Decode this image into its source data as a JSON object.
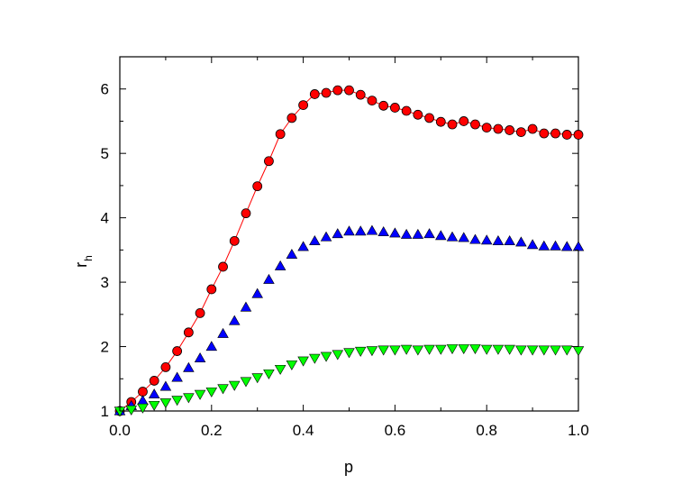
{
  "chart_data": {
    "type": "scatter",
    "xlabel": "p",
    "ylabel": "r",
    "ylabel_subscript": "h",
    "xlim": [
      0.0,
      1.0
    ],
    "ylim": [
      1,
      6.5
    ],
    "xticks": [
      0.0,
      0.2,
      0.4,
      0.6,
      0.8,
      1.0
    ],
    "xtick_labels": [
      "0.0",
      "0.2",
      "0.4",
      "0.6",
      "0.8",
      "1.0"
    ],
    "yticks": [
      1,
      2,
      3,
      4,
      5,
      6
    ],
    "ytick_labels": [
      "1",
      "2",
      "3",
      "4",
      "5",
      "6"
    ],
    "grid": false,
    "series": [
      {
        "marker": "circle",
        "color": "#ff0000",
        "line": true,
        "x": [
          0.0,
          0.025,
          0.05,
          0.075,
          0.1,
          0.125,
          0.15,
          0.175,
          0.2,
          0.225,
          0.25,
          0.275,
          0.3,
          0.325,
          0.35,
          0.375,
          0.4,
          0.425,
          0.45,
          0.475,
          0.5,
          0.525,
          0.55,
          0.575,
          0.6,
          0.625,
          0.65,
          0.675,
          0.7,
          0.725,
          0.75,
          0.775,
          0.8,
          0.825,
          0.85,
          0.875,
          0.9,
          0.925,
          0.95,
          0.975,
          1.0
        ],
        "y": [
          1.0,
          1.14,
          1.3,
          1.47,
          1.68,
          1.93,
          2.22,
          2.52,
          2.89,
          3.24,
          3.64,
          4.07,
          4.49,
          4.88,
          5.3,
          5.55,
          5.75,
          5.92,
          5.94,
          5.98,
          5.98,
          5.91,
          5.82,
          5.74,
          5.71,
          5.66,
          5.6,
          5.55,
          5.49,
          5.45,
          5.5,
          5.45,
          5.4,
          5.38,
          5.36,
          5.33,
          5.38,
          5.31,
          5.31,
          5.29,
          5.29
        ]
      },
      {
        "marker": "triangle-up",
        "color": "#0000ff",
        "line": false,
        "x": [
          0.0,
          0.025,
          0.05,
          0.075,
          0.1,
          0.125,
          0.15,
          0.175,
          0.2,
          0.225,
          0.25,
          0.275,
          0.3,
          0.325,
          0.35,
          0.375,
          0.4,
          0.425,
          0.45,
          0.475,
          0.5,
          0.525,
          0.55,
          0.575,
          0.6,
          0.625,
          0.65,
          0.675,
          0.7,
          0.725,
          0.75,
          0.775,
          0.8,
          0.825,
          0.85,
          0.875,
          0.9,
          0.925,
          0.95,
          0.975,
          1.0
        ],
        "y": [
          1.0,
          1.08,
          1.16,
          1.26,
          1.38,
          1.52,
          1.67,
          1.82,
          2.0,
          2.2,
          2.4,
          2.61,
          2.82,
          3.04,
          3.25,
          3.43,
          3.55,
          3.64,
          3.7,
          3.75,
          3.79,
          3.79,
          3.8,
          3.78,
          3.76,
          3.74,
          3.74,
          3.75,
          3.72,
          3.7,
          3.69,
          3.66,
          3.65,
          3.64,
          3.64,
          3.62,
          3.58,
          3.56,
          3.56,
          3.55,
          3.55
        ]
      },
      {
        "marker": "triangle-down",
        "color": "#00ff00",
        "line": false,
        "x": [
          0.0,
          0.025,
          0.05,
          0.075,
          0.1,
          0.125,
          0.15,
          0.175,
          0.2,
          0.225,
          0.25,
          0.275,
          0.3,
          0.325,
          0.35,
          0.375,
          0.4,
          0.425,
          0.45,
          0.475,
          0.5,
          0.525,
          0.55,
          0.575,
          0.6,
          0.625,
          0.65,
          0.675,
          0.7,
          0.725,
          0.75,
          0.775,
          0.8,
          0.825,
          0.85,
          0.875,
          0.9,
          0.925,
          0.95,
          0.975,
          1.0
        ],
        "y": [
          1.0,
          1.02,
          1.05,
          1.09,
          1.13,
          1.17,
          1.21,
          1.26,
          1.3,
          1.35,
          1.4,
          1.46,
          1.52,
          1.58,
          1.65,
          1.72,
          1.78,
          1.82,
          1.85,
          1.88,
          1.91,
          1.93,
          1.94,
          1.95,
          1.95,
          1.96,
          1.95,
          1.96,
          1.96,
          1.97,
          1.97,
          1.97,
          1.96,
          1.96,
          1.96,
          1.95,
          1.95,
          1.95,
          1.95,
          1.95,
          1.94
        ]
      }
    ]
  }
}
